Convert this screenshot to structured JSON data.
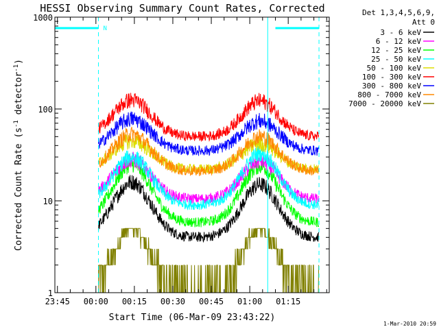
{
  "chart_data": {
    "type": "line",
    "title": "HESSI Observing Summary Count Rates, Corrected",
    "xlabel": "Start Time (06-Mar-09 23:43:22)",
    "ylabel_main": "Corrected Count Rate (s",
    "ylabel_sup1": "-1",
    "ylabel_mid": " detector",
    "ylabel_sup2": "-1",
    "ylabel_end": ")",
    "yscale": "log",
    "ylim": [
      1,
      1000
    ],
    "y_ticks": [
      {
        "value": 1,
        "label": "1"
      },
      {
        "value": 10,
        "label": "10"
      },
      {
        "value": 100,
        "label": "100"
      },
      {
        "value": 1000,
        "label": "1000"
      }
    ],
    "xlim_minutes": [
      -16,
      91
    ],
    "x_ticks": [
      {
        "minute": -15,
        "label": "23:45"
      },
      {
        "minute": 0,
        "label": "00:00"
      },
      {
        "minute": 15,
        "label": "00:15"
      },
      {
        "minute": 30,
        "label": "00:30"
      },
      {
        "minute": 45,
        "label": "00:45"
      },
      {
        "minute": 60,
        "label": "01:00"
      },
      {
        "minute": 75,
        "label": "01:15"
      }
    ],
    "legend_header": [
      "Det 1,3,4,5,6,9,",
      "Att 0"
    ],
    "legend_position": "right",
    "series": [
      {
        "name": "3 - 6 keV",
        "color": "#000000",
        "base": 4,
        "peak1": 16,
        "peak2": 15
      },
      {
        "name": "6 - 12 keV",
        "color": "#ff00ff",
        "base": 10.5,
        "peak1": 28,
        "peak2": 27
      },
      {
        "name": "12 - 25 keV",
        "color": "#00ff00",
        "base": 5.8,
        "peak1": 25,
        "peak2": 24
      },
      {
        "name": "25 - 50 keV",
        "color": "#00ffff",
        "base": 9,
        "peak1": 30,
        "peak2": 33
      },
      {
        "name": "50 - 100 keV",
        "color": "#dddd00",
        "base": 22,
        "peak1": 45,
        "peak2": 42
      },
      {
        "name": "100 - 300 keV",
        "color": "#ff0000",
        "base": 50,
        "peak1": 125,
        "peak2": 122
      },
      {
        "name": "300 - 800 keV",
        "color": "#0000ff",
        "base": 35,
        "peak1": 78,
        "peak2": 74
      },
      {
        "name": "800 - 7000 keV",
        "color": "#ff8800",
        "base": 21,
        "peak1": 53,
        "peak2": 50
      },
      {
        "name": "7000 - 20000 keV",
        "color": "#808000",
        "base": 1,
        "peak1": 5,
        "peak2": 5
      }
    ],
    "peak_times_minutes": [
      14,
      64
    ],
    "night_label": "N",
    "annotation_color": "#00ffff",
    "night_intervals_minutes": [
      [
        -16,
        1
      ],
      [
        70,
        87
      ]
    ],
    "dashed_lines_minutes": [
      1,
      87
    ],
    "solid_lines_minutes": [
      -16,
      67
    ]
  },
  "footer": {
    "timestamp": "1-Mar-2010 20:59"
  }
}
